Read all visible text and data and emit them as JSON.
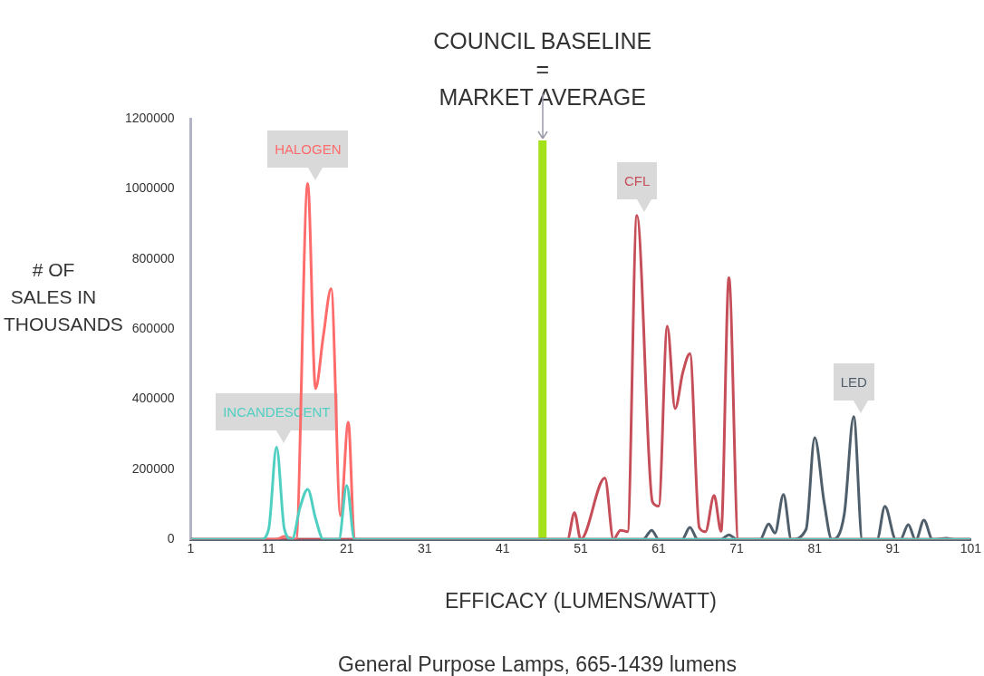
{
  "chart_data": {
    "type": "line",
    "xlabel": "EFFICACY (LUMENS/WATT)",
    "ylabel": "# OF SALES IN THOUSANDS",
    "annotations": [
      "General Purpose Lamps, 665-1439 lumens"
    ],
    "xlim": [
      1,
      101
    ],
    "xticks": [
      1,
      11,
      21,
      31,
      41,
      51,
      61,
      71,
      81,
      91,
      101
    ],
    "ylim": [
      0,
      1200000
    ],
    "yticks": [
      0,
      200000,
      400000,
      600000,
      800000,
      1000000,
      1200000
    ],
    "grid": false,
    "legend": false,
    "marker": "none",
    "line_style": "solid",
    "ref_lines": [
      {
        "axis": "x",
        "value": 46.1,
        "label": "COUNCIL BASELINE\n=\nMARKET AVERAGE",
        "color": "#a3e21a"
      }
    ],
    "series": [
      {
        "name": "INCANDESCENT",
        "color": "#4fcfc2",
        "x": [
          1,
          10,
          11,
          12,
          13,
          14,
          15,
          16,
          17,
          18,
          20,
          21,
          22,
          101
        ],
        "values": [
          0,
          0,
          30000,
          263000,
          30000,
          0,
          90000,
          143000,
          60000,
          0,
          0,
          154000,
          0,
          0
        ]
      },
      {
        "name": "HALOGEN",
        "color": "#fe6b6b",
        "x": [
          1,
          12,
          13,
          14.5,
          16,
          17,
          18,
          19,
          20.2,
          21.2,
          22,
          101
        ],
        "values": [
          0,
          0,
          8000,
          0,
          1015000,
          430000,
          580000,
          715000,
          68000,
          334000,
          0,
          0
        ]
      },
      {
        "name": "CFL",
        "color": "#c54e58",
        "x": [
          1,
          49.3,
          50.2,
          51,
          54.1,
          55.2,
          56.1,
          57,
          58.2,
          60.2,
          61,
          62.1,
          63.1,
          64.1,
          65,
          66.2,
          67,
          68.1,
          69,
          70,
          71.2,
          101
        ],
        "values": [
          0,
          0,
          76000,
          0,
          175000,
          0,
          26000,
          22000,
          924000,
          107000,
          95000,
          608000,
          373000,
          477000,
          530000,
          34000,
          22000,
          125000,
          23000,
          746000,
          0,
          0
        ]
      },
      {
        "name": "LED",
        "color": "#4f5e6b",
        "x": [
          1,
          59,
          60.1,
          61,
          64,
          65,
          66,
          69,
          70,
          71,
          74,
          75.1,
          75.9,
          77,
          78,
          79.9,
          81,
          82.2,
          83.2,
          84.8,
          86,
          87.1,
          89,
          90,
          91.4,
          92,
          93,
          93.9,
          94,
          95,
          96.1,
          97.9,
          99,
          101
        ],
        "values": [
          0,
          0,
          26000,
          0,
          0,
          34000,
          0,
          0,
          13000,
          0,
          0,
          44000,
          18000,
          128000,
          0,
          29000,
          290000,
          107000,
          0,
          73000,
          350000,
          0,
          0,
          94000,
          0,
          0,
          42000,
          0,
          0,
          55000,
          0,
          3000,
          0,
          0
        ]
      }
    ]
  }
}
